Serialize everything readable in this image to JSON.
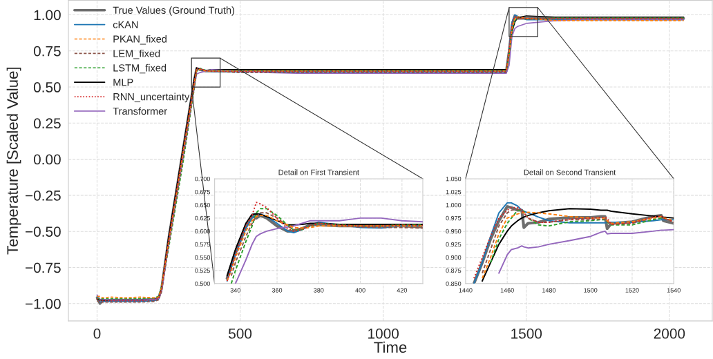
{
  "chart_data": [
    {
      "type": "line",
      "xlabel": "Time",
      "ylabel": "Temperature [Scaled Value]",
      "xlim": [
        -100,
        2150
      ],
      "ylim": [
        -1.12,
        1.1
      ],
      "xticks": [
        0,
        500,
        1000,
        1500,
        2000
      ],
      "yticks": [
        {
          "value": -1,
          "label": "−1.00"
        },
        {
          "value": -0.75,
          "label": "−0.75"
        },
        {
          "value": -0.5,
          "label": "−0.50"
        },
        {
          "value": -0.25,
          "label": "−0.25"
        },
        {
          "value": 0,
          "label": "0.00"
        },
        {
          "value": 0.25,
          "label": "0.25"
        },
        {
          "value": 0.5,
          "label": "0.50"
        },
        {
          "value": 0.75,
          "label": "0.75"
        },
        {
          "value": 1,
          "label": "1.00"
        }
      ],
      "grid": true,
      "legend": "top left",
      "x": [
        0,
        10,
        20,
        50,
        100,
        150,
        200,
        215,
        225,
        250,
        300,
        340,
        348,
        360,
        380,
        400,
        500,
        600,
        700,
        800,
        900,
        1000,
        1100,
        1200,
        1300,
        1400,
        1430,
        1440,
        1450,
        1460,
        1470,
        1500,
        1600,
        1700,
        1800,
        1900,
        2000,
        2050
      ],
      "series": [
        {
          "name": "True Values (Ground Truth)",
          "color": "#555555",
          "line_style": "solid",
          "values": [
            -0.96,
            -1.0,
            -0.98,
            -0.975,
            -0.975,
            -0.975,
            -0.97,
            -0.96,
            -0.9,
            -0.55,
            0.06,
            0.55,
            0.63,
            0.62,
            0.61,
            0.61,
            0.61,
            0.61,
            0.61,
            0.61,
            0.61,
            0.61,
            0.61,
            0.61,
            0.61,
            0.61,
            0.61,
            0.75,
            0.93,
            0.995,
            0.975,
            0.975,
            0.975,
            0.975,
            0.975,
            0.975,
            0.975,
            0.975
          ]
        },
        {
          "name": "cKAN",
          "color": "#1f77b4",
          "line_style": "solid",
          "values": [
            -0.95,
            -0.99,
            -0.985,
            -0.985,
            -0.985,
            -0.985,
            -0.98,
            -0.97,
            -0.91,
            -0.59,
            0.02,
            0.52,
            0.625,
            0.615,
            0.617,
            0.607,
            0.605,
            0.605,
            0.605,
            0.605,
            0.605,
            0.605,
            0.605,
            0.605,
            0.605,
            0.605,
            0.605,
            0.76,
            0.95,
            1.0,
            0.99,
            0.966,
            0.966,
            0.966,
            0.966,
            0.966,
            0.966,
            0.966
          ]
        },
        {
          "name": "PKAN_fixed",
          "color": "#ff7f0e",
          "line_style": "dashed",
          "values": [
            -0.95,
            -0.95,
            -0.96,
            -0.955,
            -0.96,
            -0.955,
            -0.96,
            -0.955,
            -0.89,
            -0.57,
            0.04,
            0.53,
            0.62,
            0.62,
            0.61,
            0.61,
            0.61,
            0.61,
            0.61,
            0.61,
            0.61,
            0.61,
            0.61,
            0.61,
            0.61,
            0.61,
            0.61,
            0.73,
            0.9,
            0.975,
            0.986,
            0.975,
            0.96,
            0.96,
            0.96,
            0.96,
            0.96,
            0.96
          ]
        },
        {
          "name": "LEM_fixed",
          "color": "#8c564b",
          "line_style": "dashed",
          "values": [
            -0.98,
            -0.995,
            -0.99,
            -0.99,
            -0.99,
            -0.99,
            -0.985,
            -0.975,
            -0.92,
            -0.6,
            0.0,
            0.5,
            0.615,
            0.625,
            0.615,
            0.608,
            0.6,
            0.6,
            0.6,
            0.6,
            0.6,
            0.6,
            0.6,
            0.6,
            0.6,
            0.6,
            0.6,
            0.74,
            0.92,
            0.985,
            0.975,
            0.972,
            0.972,
            0.972,
            0.972,
            0.972,
            0.972,
            0.972
          ]
        },
        {
          "name": "LSTM_fixed",
          "color": "#2ca02c",
          "line_style": "dashed",
          "values": [
            -0.96,
            -0.97,
            -0.965,
            -0.965,
            -0.965,
            -0.965,
            -0.96,
            -0.95,
            -0.88,
            -0.62,
            -0.03,
            0.49,
            0.61,
            0.63,
            0.615,
            0.615,
            0.615,
            0.615,
            0.615,
            0.615,
            0.615,
            0.615,
            0.615,
            0.615,
            0.615,
            0.615,
            0.615,
            0.72,
            0.89,
            0.965,
            0.975,
            0.97,
            0.978,
            0.978,
            0.978,
            0.978,
            0.978,
            0.978
          ]
        },
        {
          "name": "MLP",
          "color": "#000000",
          "line_style": "solid",
          "values": [
            -0.97,
            -0.975,
            -0.975,
            -0.975,
            -0.975,
            -0.975,
            -0.97,
            -0.96,
            -0.9,
            -0.54,
            0.07,
            0.56,
            0.632,
            0.62,
            0.615,
            0.62,
            0.62,
            0.62,
            0.62,
            0.62,
            0.62,
            0.62,
            0.62,
            0.62,
            0.62,
            0.62,
            0.62,
            0.72,
            0.88,
            0.95,
            0.98,
            0.992,
            0.984,
            0.984,
            0.984,
            0.984,
            0.984,
            0.984
          ]
        },
        {
          "name": "RNN_uncertainty",
          "color": "#d62728",
          "line_style": "dotted",
          "values": [
            -0.965,
            -0.98,
            -0.98,
            -0.98,
            -0.98,
            -0.98,
            -0.975,
            -0.965,
            -0.9,
            -0.56,
            0.05,
            0.54,
            0.63,
            0.625,
            0.615,
            0.61,
            0.608,
            0.608,
            0.608,
            0.608,
            0.608,
            0.608,
            0.608,
            0.608,
            0.608,
            0.608,
            0.608,
            0.77,
            0.94,
            0.99,
            0.975,
            0.975,
            0.975,
            0.975,
            0.975,
            0.975,
            0.975,
            0.975
          ]
        },
        {
          "name": "Transformer",
          "color": "#9467bd",
          "line_style": "solid",
          "values": [
            -0.94,
            -0.97,
            -0.97,
            -0.975,
            -0.975,
            -0.975,
            -0.97,
            -0.965,
            -0.92,
            -0.6,
            0.0,
            0.5,
            0.59,
            0.6,
            0.61,
            0.62,
            0.61,
            0.6,
            0.595,
            0.595,
            0.595,
            0.595,
            0.595,
            0.595,
            0.595,
            0.595,
            0.595,
            0.65,
            0.85,
            0.905,
            0.92,
            0.94,
            0.96,
            0.965,
            0.965,
            0.965,
            0.965,
            0.965
          ]
        }
      ]
    },
    {
      "type": "line",
      "title": "Detail on First Transient",
      "xlim": [
        330,
        430
      ],
      "ylim": [
        0.5,
        0.7
      ],
      "xticks": [
        340,
        360,
        380,
        400,
        420
      ],
      "yticks": [
        {
          "value": 0.5,
          "label": "0.500"
        },
        {
          "value": 0.525,
          "label": "0.525"
        },
        {
          "value": 0.55,
          "label": "0.550"
        },
        {
          "value": 0.575,
          "label": "0.575"
        },
        {
          "value": 0.6,
          "label": "0.600"
        },
        {
          "value": 0.625,
          "label": "0.625"
        },
        {
          "value": 0.65,
          "label": "0.650"
        },
        {
          "value": 0.675,
          "label": "0.675"
        },
        {
          "value": 0.7,
          "label": "0.700"
        }
      ],
      "grid": true,
      "x": [
        336,
        338,
        340,
        345,
        348,
        350,
        352,
        355,
        360,
        365,
        368,
        372,
        376,
        380,
        390,
        400,
        410,
        420,
        430
      ],
      "series": [
        {
          "color": "#555555",
          "line_style": "solid",
          "values": [
            0.51,
            0.535,
            0.56,
            0.61,
            0.63,
            0.625,
            0.63,
            0.625,
            0.61,
            0.6,
            0.6,
            0.605,
            0.612,
            0.612,
            0.61,
            0.61,
            0.61,
            0.61,
            0.608
          ]
        },
        {
          "color": "#1f77b4",
          "line_style": "solid",
          "values": [
            0.505,
            0.53,
            0.555,
            0.605,
            0.625,
            0.632,
            0.633,
            0.628,
            0.615,
            0.6,
            0.597,
            0.603,
            0.612,
            0.617,
            0.612,
            0.607,
            0.606,
            0.61,
            0.612
          ]
        },
        {
          "color": "#ff7f0e",
          "line_style": "dashed",
          "values": [
            0.505,
            0.525,
            0.55,
            0.6,
            0.62,
            0.628,
            0.63,
            0.63,
            0.62,
            0.612,
            0.607,
            0.606,
            0.607,
            0.61,
            0.61,
            0.61,
            0.61,
            0.61,
            0.61
          ]
        },
        {
          "color": "#8c564b",
          "line_style": "dashed",
          "values": [
            null,
            0.515,
            0.54,
            0.59,
            0.615,
            0.628,
            0.635,
            0.635,
            0.625,
            0.61,
            0.603,
            0.605,
            0.612,
            0.615,
            0.61,
            0.608,
            0.607,
            0.607,
            0.606
          ]
        },
        {
          "color": "#2ca02c",
          "line_style": "dashed",
          "values": [
            null,
            0.5,
            0.525,
            0.58,
            0.61,
            0.635,
            0.643,
            0.643,
            0.63,
            0.612,
            0.602,
            0.603,
            0.61,
            0.615,
            0.612,
            0.61,
            0.61,
            0.612,
            0.612
          ]
        },
        {
          "color": "#000000",
          "line_style": "solid",
          "values": [
            0.515,
            0.54,
            0.565,
            0.615,
            0.632,
            0.633,
            0.632,
            0.628,
            0.62,
            0.612,
            0.612,
            0.613,
            0.615,
            0.615,
            0.613,
            0.613,
            0.613,
            0.613,
            0.613
          ]
        },
        {
          "color": "#d62728",
          "line_style": "dotted",
          "values": [
            0.505,
            0.53,
            0.555,
            0.61,
            0.63,
            0.655,
            0.652,
            0.645,
            0.625,
            0.605,
            0.6,
            0.603,
            0.61,
            0.615,
            0.612,
            0.61,
            0.61,
            0.612,
            0.611
          ]
        },
        {
          "color": "#9467bd",
          "line_style": "solid",
          "values": [
            null,
            null,
            0.5,
            0.545,
            0.575,
            0.59,
            0.595,
            0.6,
            0.605,
            0.608,
            0.61,
            0.615,
            0.62,
            0.62,
            0.62,
            0.625,
            0.625,
            0.62,
            0.618
          ]
        }
      ]
    },
    {
      "type": "line",
      "title": "Detail on Second Transient",
      "xlim": [
        1440,
        1540
      ],
      "ylim": [
        0.85,
        1.05
      ],
      "xticks": [
        1440,
        1460,
        1480,
        1500,
        1520,
        1540
      ],
      "yticks": [
        {
          "value": 0.85,
          "label": "0.850"
        },
        {
          "value": 0.875,
          "label": "0.875"
        },
        {
          "value": 0.9,
          "label": "0.900"
        },
        {
          "value": 0.925,
          "label": "0.925"
        },
        {
          "value": 0.95,
          "label": "0.950"
        },
        {
          "value": 0.975,
          "label": "0.975"
        },
        {
          "value": 1.0,
          "label": "1.000"
        },
        {
          "value": 1.025,
          "label": "1.025"
        },
        {
          "value": 1.05,
          "label": "1.050"
        }
      ],
      "grid": true,
      "x": [
        1444,
        1448,
        1452,
        1456,
        1460,
        1462,
        1465,
        1467,
        1468,
        1470,
        1475,
        1480,
        1490,
        1500,
        1505,
        1507,
        1508,
        1510,
        1520,
        1530,
        1534,
        1535,
        1540
      ],
      "series": [
        {
          "color": "#555555",
          "line_style": "solid",
          "values": [
            0.85,
            0.89,
            0.935,
            0.97,
            0.997,
            0.995,
            0.99,
            0.99,
            0.957,
            0.965,
            0.967,
            0.973,
            0.976,
            0.976,
            0.978,
            0.978,
            0.955,
            0.965,
            0.968,
            0.978,
            0.98,
            0.97,
            0.965
          ]
        },
        {
          "color": "#1f77b4",
          "line_style": "solid",
          "values": [
            0.85,
            0.89,
            0.94,
            0.985,
            1.004,
            1.004,
            0.998,
            0.99,
            0.988,
            0.985,
            0.977,
            0.97,
            0.966,
            0.966,
            0.966,
            0.966,
            0.967,
            0.967,
            0.967,
            0.97,
            0.972,
            0.972,
            0.972
          ]
        },
        {
          "color": "#ff7f0e",
          "line_style": "dashed",
          "values": [
            null,
            0.86,
            0.9,
            0.945,
            0.975,
            0.978,
            0.983,
            0.985,
            0.985,
            0.986,
            0.985,
            0.983,
            0.978,
            0.975,
            0.975,
            0.975,
            0.97,
            0.965,
            0.968,
            0.975,
            0.978,
            0.976,
            0.97
          ]
        },
        {
          "color": "#8c564b",
          "line_style": "dashed",
          "values": [
            null,
            0.87,
            0.915,
            0.96,
            0.985,
            0.99,
            0.992,
            0.99,
            0.985,
            0.975,
            0.967,
            0.967,
            0.972,
            0.972,
            0.973,
            0.973,
            0.968,
            0.963,
            0.965,
            0.975,
            0.978,
            0.975,
            0.967
          ]
        },
        {
          "color": "#2ca02c",
          "line_style": "dashed",
          "values": [
            null,
            null,
            0.89,
            0.935,
            0.965,
            0.975,
            0.99,
            0.99,
            0.988,
            0.975,
            0.962,
            0.96,
            0.968,
            0.97,
            0.972,
            0.972,
            0.967,
            0.962,
            0.962,
            0.972,
            0.975,
            0.975,
            0.968
          ]
        },
        {
          "color": "#000000",
          "line_style": "solid",
          "values": [
            null,
            0.855,
            0.89,
            0.925,
            0.95,
            0.96,
            0.97,
            0.975,
            0.977,
            0.98,
            0.985,
            0.989,
            0.993,
            0.992,
            0.99,
            0.99,
            0.99,
            0.988,
            0.983,
            0.979,
            0.978,
            0.977,
            0.975
          ]
        },
        {
          "color": "#d62728",
          "line_style": "dotted",
          "values": [
            0.86,
            0.9,
            0.94,
            0.975,
            0.99,
            0.995,
            0.995,
            0.99,
            0.985,
            0.975,
            0.967,
            0.967,
            0.973,
            0.975,
            0.976,
            0.976,
            0.975,
            0.963,
            0.966,
            0.977,
            0.979,
            0.975,
            0.968
          ]
        },
        {
          "color": "#9467bd",
          "line_style": "solid",
          "values": [
            null,
            null,
            null,
            0.87,
            0.905,
            0.915,
            0.918,
            0.922,
            0.92,
            0.918,
            0.92,
            0.925,
            0.932,
            0.94,
            0.948,
            0.95,
            0.945,
            0.946,
            0.946,
            0.95,
            0.952,
            0.952,
            0.953
          ]
        }
      ]
    }
  ]
}
